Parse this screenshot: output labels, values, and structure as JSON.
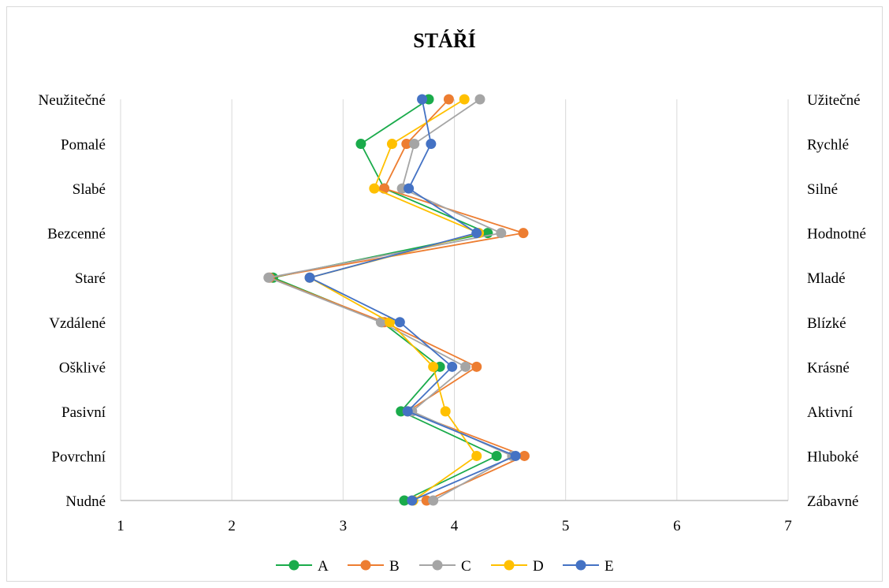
{
  "chart_data": {
    "type": "line",
    "title": "STÁŘÍ",
    "xlim": [
      1,
      7
    ],
    "x_ticks": [
      1,
      2,
      3,
      4,
      5,
      6,
      7
    ],
    "grid": "vertical",
    "legend_position": "bottom",
    "left_labels": [
      "Neužitečné",
      "Pomalé",
      "Slabé",
      "Bezcenné",
      "Staré",
      "Vzdálené",
      "Ošklivé",
      "Pasivní",
      "Povrchní",
      "Nudné"
    ],
    "right_labels": [
      "Užitečné",
      "Rychlé",
      "Silné",
      "Hodnotné",
      "Mladé",
      "Blízké",
      "Krásné",
      "Aktivní",
      "Hluboké",
      "Zábavné"
    ],
    "series": [
      {
        "name": "A",
        "color": "#1aab4b",
        "values": [
          3.77,
          3.16,
          3.37,
          4.3,
          2.37,
          3.35,
          3.87,
          3.52,
          4.38,
          3.55
        ]
      },
      {
        "name": "B",
        "color": "#ed7d31",
        "values": [
          3.95,
          3.57,
          3.37,
          4.62,
          2.34,
          3.37,
          4.2,
          3.58,
          4.63,
          3.75
        ]
      },
      {
        "name": "C",
        "color": "#a5a5a5",
        "values": [
          4.23,
          3.64,
          3.53,
          4.42,
          2.33,
          3.34,
          4.1,
          3.62,
          4.52,
          3.81
        ]
      },
      {
        "name": "D",
        "color": "#ffc000",
        "values": [
          4.09,
          3.44,
          3.28,
          4.22,
          2.7,
          3.42,
          3.81,
          3.92,
          4.2,
          3.63
        ]
      },
      {
        "name": "E",
        "color": "#4472c4",
        "values": [
          3.71,
          3.79,
          3.59,
          4.2,
          2.7,
          3.51,
          3.98,
          3.58,
          4.55,
          3.62
        ]
      }
    ]
  }
}
